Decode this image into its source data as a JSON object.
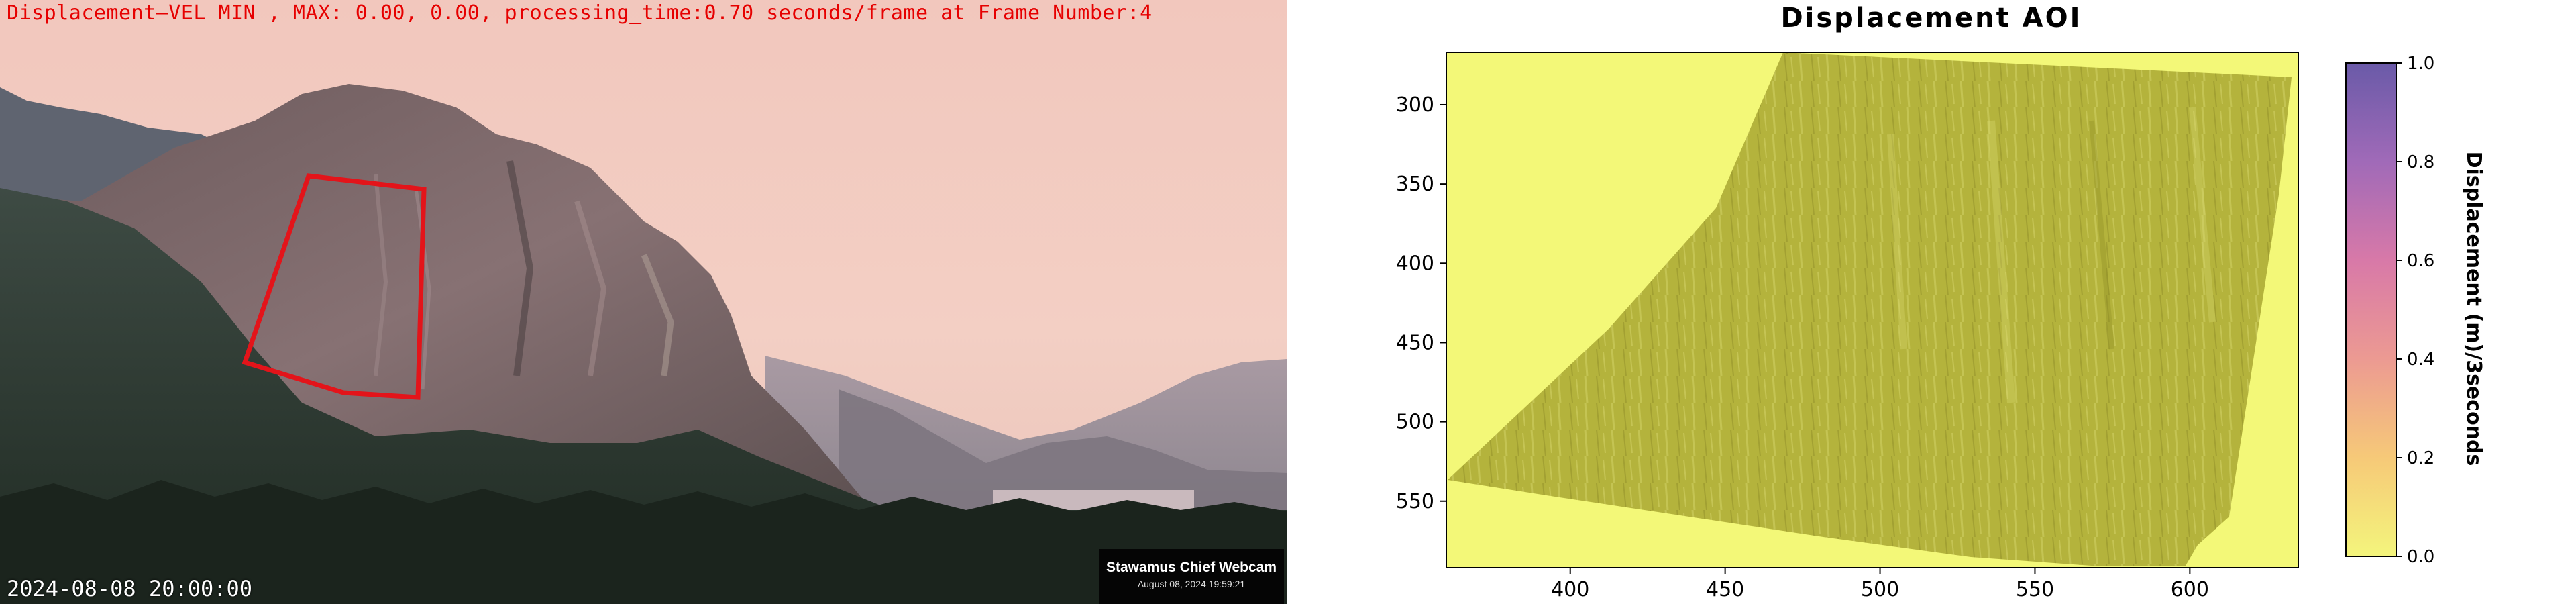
{
  "overlay": {
    "status_text": "Displacement—VEL MIN , MAX: 0.00, 0.00, processing_time:0.70 seconds/frame at Frame Number:4",
    "timestamp": "2024-08-08 20:00:00"
  },
  "webcam_badge": {
    "title": "Stawamus Chief Webcam",
    "date": "August 08, 2024 19:59:21"
  },
  "colors": {
    "overlay_text": "#e60000",
    "aoi_outline": "#e3141a",
    "map_background": "#f3f878",
    "map_surface": "#b4b33c",
    "colorbar_top": "#6a5aa8",
    "colorbar_bottom": "#f4f57c"
  },
  "chart_data": {
    "type": "heatmap",
    "title": "Displacement AOI",
    "x_ticks": [
      "400",
      "450",
      "500",
      "550",
      "600"
    ],
    "y_ticks": [
      "300",
      "350",
      "400",
      "450",
      "500",
      "550"
    ],
    "x_range": [
      360,
      635
    ],
    "y_range": [
      592,
      267
    ],
    "x_tick_values": [
      400,
      450,
      500,
      550,
      600
    ],
    "y_tick_values": [
      300,
      350,
      400,
      450,
      500,
      550
    ],
    "colorbar": {
      "label": "Displacement (m)/3seconds",
      "ticks": [
        "0.0",
        "0.2",
        "0.4",
        "0.6",
        "0.8",
        "1.0"
      ],
      "tick_values": [
        0.0,
        0.2,
        0.4,
        0.6,
        0.8,
        1.0
      ],
      "range": [
        0.0,
        1.0
      ]
    }
  }
}
